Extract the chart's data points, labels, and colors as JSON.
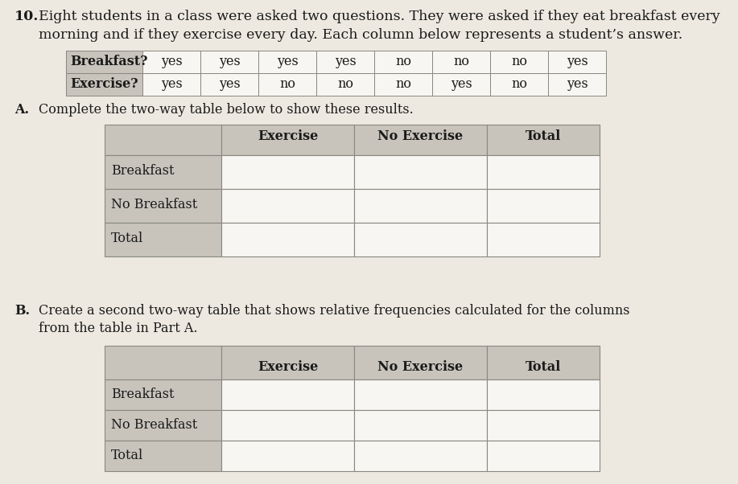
{
  "title_number": "10.",
  "title_line1": "Eight students in a class were asked two questions. They were asked if they eat breakfast every",
  "title_line2": "morning and if they exercise every day. Each column below represents a student’s answer.",
  "data_table_row1": [
    "Breakfast?",
    "yes",
    "yes",
    "yes",
    "yes",
    "no",
    "no",
    "no",
    "yes"
  ],
  "data_table_row2": [
    "Exercise?",
    "yes",
    "yes",
    "no",
    "no",
    "no",
    "yes",
    "no",
    "yes"
  ],
  "part_a_label": "A.",
  "part_a_text": "Complete the two-way table below to show these results.",
  "part_b_label": "B.",
  "part_b_line1": "Create a second two-way table that shows relative frequencies calculated for the columns",
  "part_b_line2": "from the table in Part A.",
  "table_col_headers": [
    "",
    "Exercise",
    "No Exercise",
    "Total"
  ],
  "table_row_labels": [
    "Breakfast",
    "No Breakfast",
    "Total"
  ],
  "bg_color": "#ede9e0",
  "table_gray": "#c8c4bc",
  "table_white": "#f8f6f2",
  "border_color": "#888880",
  "text_color": "#1a1a1a",
  "fs_title": 12.5,
  "fs_body": 11.5,
  "fs_table": 11.5
}
